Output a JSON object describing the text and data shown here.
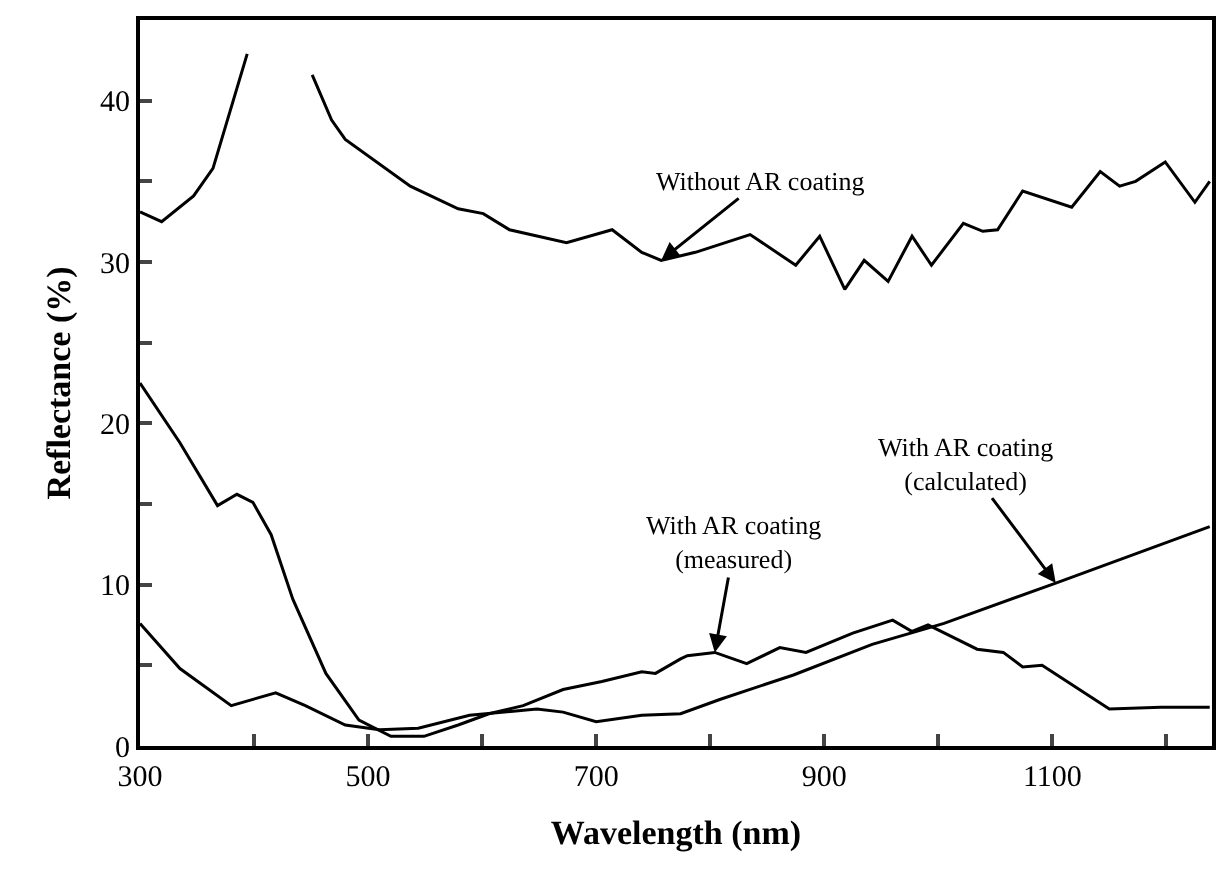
{
  "chart_data": {
    "type": "line",
    "xlabel": "Wavelength (nm)",
    "ylabel": "Reflectance (%)",
    "xlim": [
      300,
      1240
    ],
    "ylim": [
      0,
      45
    ],
    "xticks": [
      300,
      {
        "value": 400,
        "label": null
      },
      500,
      {
        "value": 600,
        "label": null
      },
      700,
      {
        "value": 800,
        "label": null
      },
      900,
      {
        "value": 1000,
        "label": null
      },
      1100,
      {
        "value": 1200,
        "label": null
      }
    ],
    "yticks": [
      0,
      {
        "value": 5,
        "label": null
      },
      10,
      {
        "value": 15,
        "label": null
      },
      20,
      {
        "value": 25,
        "label": null
      },
      30,
      {
        "value": 35,
        "label": null
      },
      40
    ],
    "marker": "none",
    "line_style": "solid",
    "series": [
      {
        "color": "#000000",
        "x": [
          300,
          319,
          347,
          364,
          394,
          420,
          451,
          468,
          480,
          537,
          579,
          601,
          624,
          674,
          714,
          740,
          757,
          787,
          835,
          875,
          896,
          918,
          935,
          956,
          977,
          994,
          1022,
          1039,
          1052,
          1074,
          1117,
          1142,
          1159,
          1173,
          1199,
          1225,
          1238
        ],
        "values": [
          33.1,
          32.5,
          34.1,
          35.8,
          42.9,
          null,
          41.6,
          38.8,
          37.6,
          34.7,
          33.3,
          33,
          32,
          31.2,
          32,
          30.6,
          30.1,
          30.6,
          31.7,
          29.8,
          31.6,
          28.3,
          30.1,
          28.8,
          31.6,
          29.8,
          32.4,
          31.9,
          32,
          34.4,
          33.4,
          35.6,
          34.7,
          35,
          36.2,
          33.7,
          35
        ]
      },
      {
        "color": "#000000",
        "x": [
          300,
          335,
          368,
          385,
          399,
          415,
          434,
          463,
          492,
          520,
          549,
          579,
          606,
          636,
          671,
          705,
          740,
          752,
          774,
          780,
          804,
          832,
          861,
          884,
          925,
          960,
          977,
          991,
          1034,
          1057,
          1074,
          1091,
          1150,
          1195,
          1238
        ],
        "values": [
          22.5,
          18.8,
          14.9,
          15.6,
          15.1,
          13.1,
          9.1,
          4.5,
          1.6,
          0.6,
          0.6,
          1.3,
          2,
          2.5,
          3.5,
          4,
          4.6,
          4.5,
          5.4,
          5.6,
          5.8,
          5.1,
          6.1,
          5.8,
          7,
          7.8,
          7.1,
          7.5,
          6,
          5.8,
          4.9,
          5,
          2.3,
          2.4,
          2.4
        ]
      },
      {
        "color": "#000000",
        "x": [
          300,
          335,
          380,
          419,
          445,
          480,
          510,
          544,
          589,
          648,
          671,
          700,
          740,
          774,
          809,
          873,
          942,
          1005,
          1103,
          1238
        ],
        "values": [
          7.6,
          4.8,
          2.5,
          3.3,
          2.5,
          1.3,
          1,
          1.1,
          1.9,
          2.3,
          2.1,
          1.5,
          1.9,
          2,
          2.9,
          4.4,
          6.3,
          7.6,
          10.1,
          13.6
        ]
      }
    ],
    "annotations": [
      {
        "text": "Without AR coating",
        "x": 757,
        "y": 30.1
      },
      {
        "text": "With AR coating\n(measured)",
        "x": 804,
        "y": 5.8
      },
      {
        "text": "With AR coating\n(calculated)",
        "x": 1103,
        "y": 10.1
      }
    ]
  }
}
